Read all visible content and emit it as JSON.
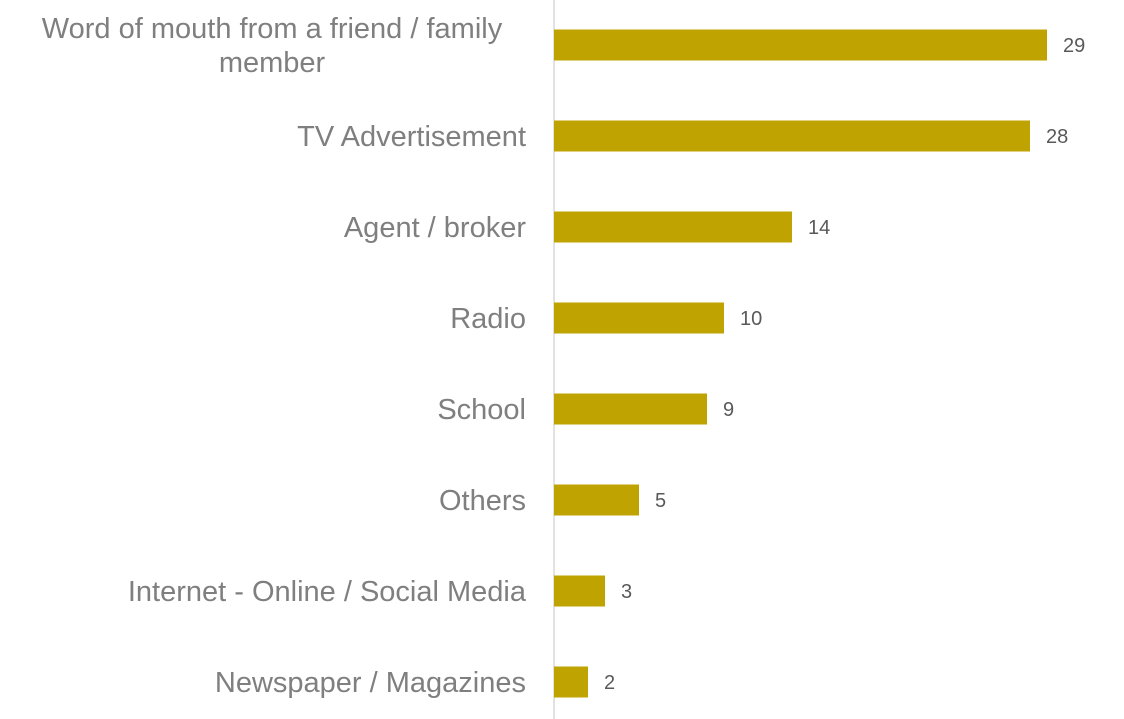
{
  "chart_data": {
    "type": "bar",
    "orientation": "horizontal",
    "categories": [
      [
        "Word of mouth from a friend / family",
        "member"
      ],
      [
        "TV Advertisement"
      ],
      [
        "Agent / broker"
      ],
      [
        "Radio"
      ],
      [
        "School"
      ],
      [
        "Others"
      ],
      [
        "Internet - Online / Social Media"
      ],
      [
        "Newspaper / Magazines"
      ]
    ],
    "values": [
      29,
      28,
      14,
      10,
      9,
      5,
      3,
      2
    ],
    "data_labels": [
      "29",
      "28",
      "14",
      "10",
      "9",
      "5",
      "3",
      "2"
    ],
    "title": "",
    "xlabel": "",
    "ylabel": "",
    "xlim": [
      0,
      33
    ],
    "grid": false,
    "legend": "none",
    "bar_color": "#BFA300",
    "axis_color": "#d9d9d9"
  }
}
